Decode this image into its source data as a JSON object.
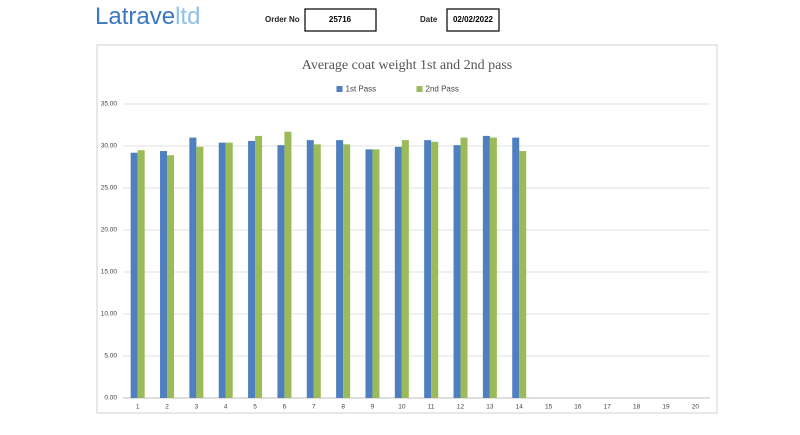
{
  "header": {
    "logo_main": "Latrave",
    "logo_suffix": "ltd",
    "order_label": "Order No",
    "order_value": "25716",
    "date_label": "Date",
    "date_value": "02/02/2022"
  },
  "chart_data": {
    "type": "bar",
    "title": "Average coat weight 1st and 2nd pass",
    "categories": [
      "1",
      "2",
      "3",
      "4",
      "5",
      "6",
      "7",
      "8",
      "9",
      "10",
      "11",
      "12",
      "13",
      "14",
      "15",
      "16",
      "17",
      "18",
      "19",
      "20"
    ],
    "series": [
      {
        "name": "1st Pass",
        "color": "#4f7fbf",
        "values": [
          29.2,
          29.4,
          31.0,
          30.4,
          30.6,
          30.1,
          30.7,
          30.7,
          29.6,
          29.9,
          30.7,
          30.1,
          31.2,
          31.0,
          null,
          null,
          null,
          null,
          null,
          null
        ]
      },
      {
        "name": "2nd Pass",
        "color": "#9bbb59",
        "values": [
          29.5,
          28.9,
          29.9,
          30.4,
          31.2,
          31.7,
          30.2,
          30.2,
          29.6,
          30.7,
          30.5,
          31.0,
          31.0,
          29.4,
          null,
          null,
          null,
          null,
          null,
          null
        ]
      }
    ],
    "ylim": [
      0,
      35
    ],
    "yticks": [
      {
        "value": 0,
        "label": "0.00"
      },
      {
        "value": 5,
        "label": "5.00"
      },
      {
        "value": 10,
        "label": "10.00"
      },
      {
        "value": 15,
        "label": "15.00"
      },
      {
        "value": 20,
        "label": "20.00"
      },
      {
        "value": 25,
        "label": "25.00"
      },
      {
        "value": 30,
        "label": "30.00"
      },
      {
        "value": 35,
        "label": "35.00"
      }
    ],
    "grid": true,
    "legend": "top"
  }
}
